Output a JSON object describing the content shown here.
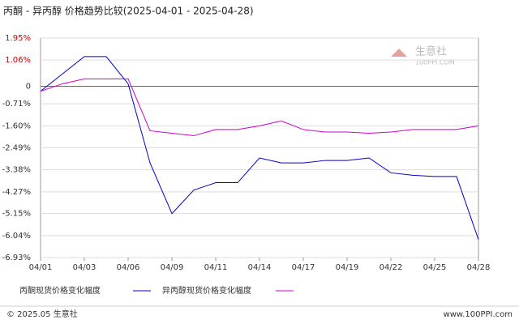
{
  "chart_data": {
    "type": "line",
    "title": "丙酮 - 异丙醇 价格趋势比较(2025-04-01 - 2025-04-28)",
    "categories": [
      "04/01",
      null,
      "04/03",
      null,
      "04/06",
      null,
      "04/09",
      null,
      "04/11",
      null,
      "04/14",
      null,
      "04/17",
      null,
      "04/19",
      null,
      "04/22",
      null,
      "04/25",
      null,
      "04/28"
    ],
    "series": [
      {
        "name": "丙酮现货价格变化幅度",
        "color": "#0000cc",
        "values": [
          -0.2,
          0.5,
          1.2,
          1.2,
          0.1,
          -3.1,
          -5.15,
          -4.2,
          -3.9,
          -3.9,
          -2.9,
          -3.1,
          -3.1,
          -3.0,
          -3.0,
          -2.9,
          -3.5,
          -3.6,
          -3.65,
          -3.65,
          -6.2
        ]
      },
      {
        "name": "异丙醇现货价格变化幅度",
        "color": "#cc00cc",
        "values": [
          -0.2,
          0.1,
          0.3,
          0.3,
          0.3,
          -1.8,
          -1.9,
          -2.0,
          -1.75,
          -1.75,
          -1.6,
          -1.4,
          -1.75,
          -1.85,
          -1.85,
          -1.9,
          -1.85,
          -1.75,
          -1.75,
          -1.75,
          -1.6
        ]
      }
    ],
    "ylim": [
      -6.93,
      1.95
    ],
    "yticks": [
      {
        "value": 1.95,
        "label": "1.95%"
      },
      {
        "value": 1.06,
        "label": "1.06%"
      },
      0,
      {
        "value": -0.71,
        "label": "-0.71%"
      },
      {
        "value": -1.6,
        "label": "-1.60%"
      },
      {
        "value": -2.49,
        "label": "-2.49%"
      },
      {
        "value": -3.38,
        "label": "-3.38%"
      },
      {
        "value": -4.27,
        "label": "-4.27%"
      },
      {
        "value": -5.15,
        "label": "-5.15%"
      },
      {
        "value": -6.04,
        "label": "-6.04%"
      },
      {
        "value": -6.93,
        "label": "-6.93%"
      }
    ],
    "grid": true
  },
  "watermark": {
    "name": "生意社",
    "site": "100PPI.COM"
  },
  "footer": {
    "left": "© 2025.05 生意社",
    "right": "www.100PPI.com"
  }
}
